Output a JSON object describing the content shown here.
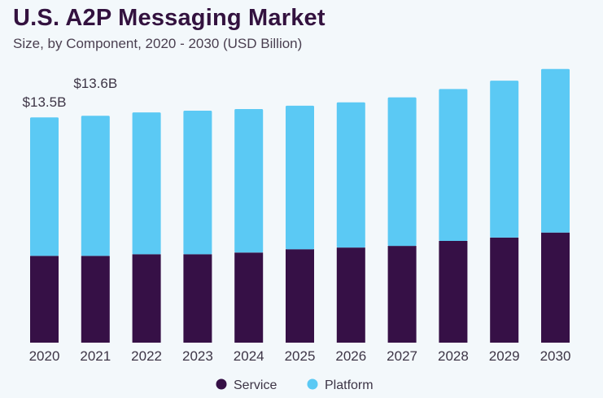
{
  "chart_data": {
    "type": "bar",
    "stacked": true,
    "title": "U.S. A2P Messaging Market",
    "subtitle": "Size, by Component, 2020 - 2030 (USD Billion)",
    "categories": [
      "2020",
      "2021",
      "2022",
      "2023",
      "2024",
      "2025",
      "2026",
      "2027",
      "2028",
      "2029",
      "2030"
    ],
    "series": [
      {
        "name": "Service",
        "color": "#361046",
        "values": [
          5.2,
          5.2,
          5.3,
          5.3,
          5.4,
          5.6,
          5.7,
          5.8,
          6.1,
          6.3,
          6.6
        ]
      },
      {
        "name": "Platform",
        "color": "#5bc9f4",
        "values": [
          8.3,
          8.4,
          8.5,
          8.6,
          8.6,
          8.6,
          8.7,
          8.9,
          9.1,
          9.4,
          9.8
        ]
      }
    ],
    "data_labels": [
      {
        "category": "2020",
        "text": "$13.5B"
      },
      {
        "category": "2021",
        "text": "$13.6B"
      }
    ],
    "xlabel": "",
    "ylabel": "",
    "ylim": [
      0,
      16.5
    ],
    "grid": false,
    "y_axis_shown": false,
    "legend": {
      "placement": "bottom",
      "items": [
        "Service",
        "Platform"
      ]
    },
    "background": "#f3f8fb"
  }
}
